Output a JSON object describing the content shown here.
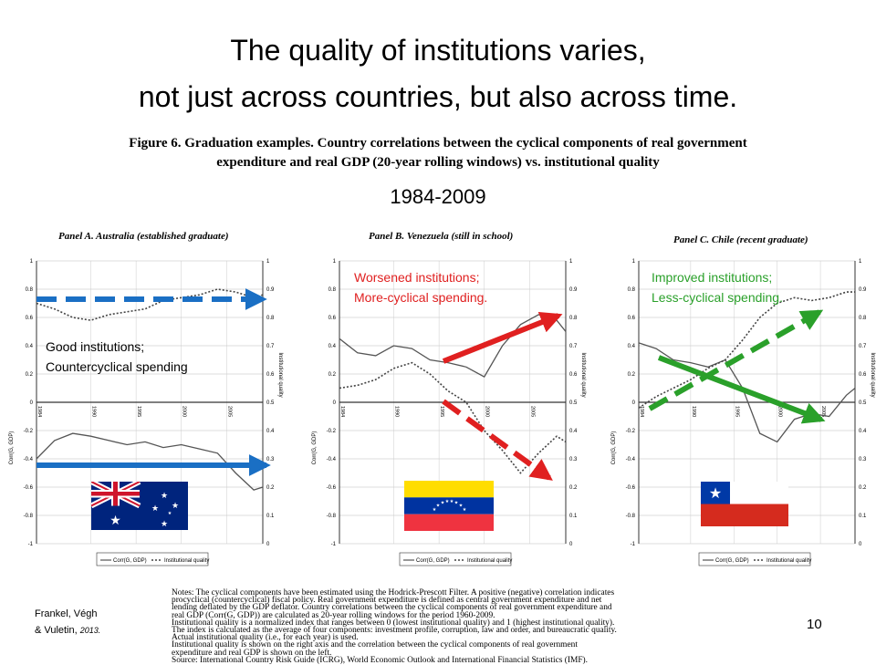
{
  "slide": {
    "title_line1": "The quality of institutions varies,",
    "title_line2": "not just across countries, but also across time.",
    "figure_caption_line1": "Figure 6. Graduation examples. Country correlations between the cyclical components of real government",
    "figure_caption_line2": "expenditure and real GDP (20-year rolling windows) vs. institutional quality",
    "period": "1984-2009",
    "source_line1": "Frankel, Végh",
    "source_line2": "& Vuletin,",
    "source_year": "2013.",
    "page_number": "10",
    "notes_lines": [
      "Notes: The cyclical components have been estimated using the Hodrick-Prescott Filter. A positive (negative) correlation indicates",
      "procyclical (countercyclical) fiscal policy. Real government expenditure is defined as central government expenditure and net",
      "lending deflated by the GDP deflator. Country correlations between the cyclical components of real government expenditure and",
      "real GDP (Corr(G, GDP)) are calculated as 20-year rolling windows for the period 1960-2009.",
      "Institutional quality is a normalized index that ranges between 0 (lowest institutional quality) and 1 (highest institutional quality).",
      "The index is calculated as the average of four components: investment profile, corruption, law and order, and bureaucratic quality.",
      "Actual institutional quality (i.e., for each year) is used.",
      "Institutional quality is shown on the right axis and the correlation between the cyclical components of real government",
      "expenditure and real GDP is shown on the left.",
      "Source: International Country Risk Guide (ICRG), World Economic Outlook and International Financial Statistics (IMF)."
    ]
  },
  "annotations": {
    "australia_line1": "Good institutions;",
    "australia_line2": "Countercyclical spending",
    "venezuela_line1": "Worsened institutions;",
    "venezuela_line2": "More-cyclical spending.",
    "chile_line1": "Improved institutions;",
    "chile_line2": "Less-cyclical spending."
  },
  "colors": {
    "red": "#e02020",
    "green": "#2aa02a",
    "blue": "#1a6fc4"
  },
  "flags": [
    "australia-flag",
    "venezuela-flag",
    "chile-flag"
  ],
  "chart_data": [
    {
      "type": "line",
      "title": "Panel A. Australia (established graduate)",
      "x": [
        1984,
        1986,
        1988,
        1990,
        1992,
        1994,
        1996,
        1998,
        2000,
        2002,
        2004,
        2006,
        2008,
        2009
      ],
      "x_ticks": [
        "1984",
        "1990",
        "1995",
        "2000",
        "2005"
      ],
      "ylabel": "Corr(G, GDP)",
      "ylabel_right": "Institutional quality",
      "ylim": [
        -1,
        1
      ],
      "ylim_right": [
        0,
        1
      ],
      "y_ticks": [
        "1",
        "0.8",
        "0.6",
        "0.4",
        "0.2",
        "0",
        "-0.2",
        "-0.4",
        "-0.6",
        "-0.8",
        "-1"
      ],
      "y_ticks_right": [
        "1",
        "0.9",
        "0.8",
        "0.7",
        "0.6",
        "0.5",
        "0.4",
        "0.3",
        "0.2",
        "0.1",
        "0"
      ],
      "series": [
        {
          "name": "Corr(G, GDP)",
          "axis": "left",
          "style": "solid",
          "values": [
            -0.4,
            -0.27,
            -0.22,
            -0.24,
            -0.27,
            -0.3,
            -0.28,
            -0.32,
            -0.3,
            -0.33,
            -0.36,
            -0.5,
            -0.62,
            -0.6
          ]
        },
        {
          "name": "Institutional quality",
          "axis": "right",
          "style": "dotted",
          "values": [
            0.85,
            0.83,
            0.8,
            0.79,
            0.81,
            0.82,
            0.83,
            0.86,
            0.87,
            0.88,
            0.9,
            0.89,
            0.87,
            0.88
          ]
        }
      ],
      "legend": "bottom",
      "legend_entries": [
        "Corr(G, GDP)",
        "Institutional quality"
      ]
    },
    {
      "type": "line",
      "title": "Panel B. Venezuela (still in school)",
      "x": [
        1984,
        1986,
        1988,
        1990,
        1992,
        1994,
        1996,
        1998,
        2000,
        2002,
        2004,
        2006,
        2008,
        2009
      ],
      "x_ticks": [
        "1984",
        "1990",
        "1995",
        "2000",
        "2005"
      ],
      "ylabel": "Corr(G, GDP)",
      "ylabel_right": "Institutional quality",
      "ylim": [
        -1,
        1
      ],
      "ylim_right": [
        0,
        1
      ],
      "y_ticks": [
        "1",
        "0.8",
        "0.6",
        "0.4",
        "0.2",
        "0",
        "-0.2",
        "-0.4",
        "-0.6",
        "-0.8",
        "-1"
      ],
      "y_ticks_right": [
        "1",
        "0.9",
        "0.8",
        "0.7",
        "0.6",
        "0.5",
        "0.4",
        "0.3",
        "0.2",
        "0.1",
        "0"
      ],
      "series": [
        {
          "name": "Corr(G, GDP)",
          "axis": "left",
          "style": "solid",
          "values": [
            0.45,
            0.35,
            0.33,
            0.4,
            0.38,
            0.3,
            0.28,
            0.25,
            0.18,
            0.4,
            0.55,
            0.62,
            0.58,
            0.5
          ]
        },
        {
          "name": "Institutional quality",
          "axis": "right",
          "style": "dotted",
          "values": [
            0.55,
            0.56,
            0.58,
            0.62,
            0.64,
            0.6,
            0.54,
            0.5,
            0.4,
            0.33,
            0.25,
            0.32,
            0.38,
            0.36
          ]
        }
      ],
      "legend": "bottom",
      "legend_entries": [
        "Corr(G, GDP)",
        "Institutional quality"
      ]
    },
    {
      "type": "line",
      "title": "Panel C. Chile (recent graduate)",
      "x": [
        1984,
        1986,
        1988,
        1990,
        1992,
        1994,
        1996,
        1998,
        2000,
        2002,
        2004,
        2006,
        2008,
        2009
      ],
      "x_ticks": [
        "1984",
        "1990",
        "1995",
        "2000",
        "2005"
      ],
      "ylabel": "Corr(G, GDP)",
      "ylabel_right": "Institutional quality",
      "ylim": [
        -1,
        1
      ],
      "ylim_right": [
        0,
        1
      ],
      "y_ticks": [
        "1",
        "0.8",
        "0.6",
        "0.4",
        "0.2",
        "0",
        "-0.2",
        "-0.4",
        "-0.6",
        "-0.8",
        "-1"
      ],
      "y_ticks_right": [
        "1",
        "0.9",
        "0.8",
        "0.7",
        "0.6",
        "0.5",
        "0.4",
        "0.3",
        "0.2",
        "0.1",
        "0"
      ],
      "series": [
        {
          "name": "Corr(G, GDP)",
          "axis": "left",
          "style": "solid",
          "values": [
            0.42,
            0.38,
            0.3,
            0.28,
            0.25,
            0.3,
            0.1,
            -0.22,
            -0.28,
            -0.12,
            -0.08,
            -0.1,
            0.05,
            0.1
          ]
        },
        {
          "name": "Institutional quality",
          "axis": "right",
          "style": "dotted",
          "values": [
            0.48,
            0.52,
            0.55,
            0.58,
            0.62,
            0.65,
            0.72,
            0.8,
            0.85,
            0.87,
            0.86,
            0.87,
            0.89,
            0.89
          ]
        }
      ],
      "legend": "bottom",
      "legend_entries": [
        "Corr(G, GDP)",
        "Institutional quality"
      ]
    }
  ]
}
